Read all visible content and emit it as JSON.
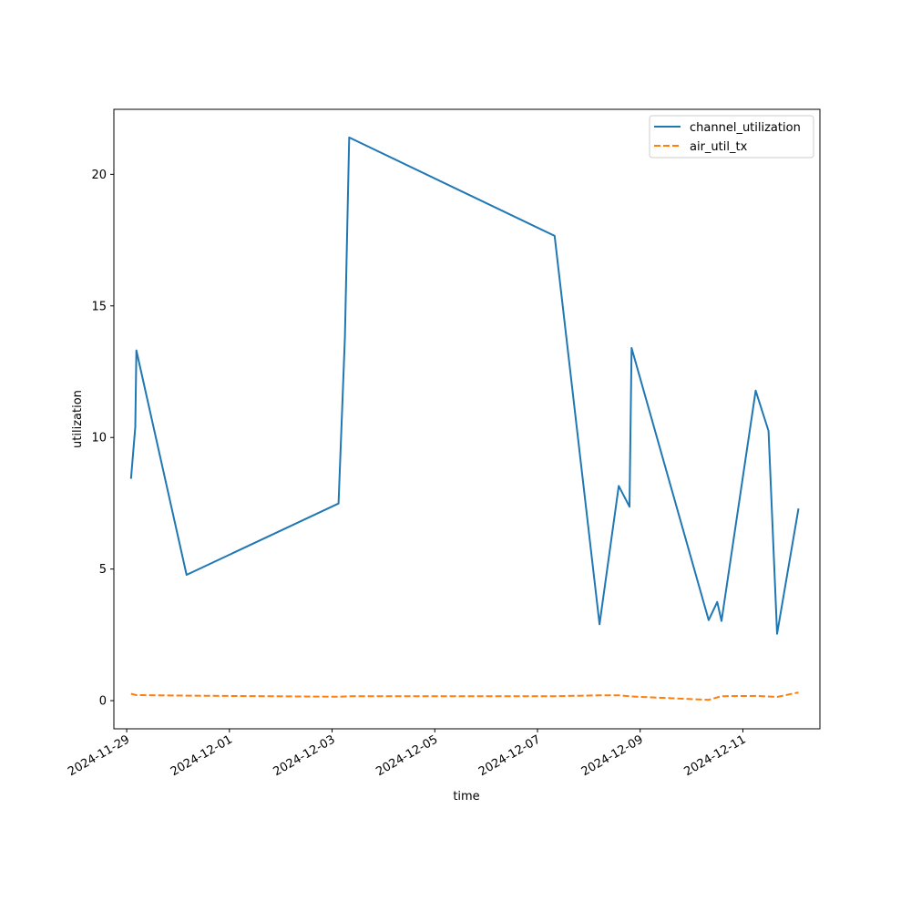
{
  "chart_data": {
    "type": "line",
    "title": "",
    "xlabel": "time",
    "ylabel": "utilization",
    "xlim": [
      "2024-11-28T18:00",
      "2024-12-12T12:00"
    ],
    "ylim": [
      -1.07,
      22.47
    ],
    "x_ticks": [
      "2024-11-29",
      "2024-12-01",
      "2024-12-03",
      "2024-12-05",
      "2024-12-07",
      "2024-12-09",
      "2024-12-11"
    ],
    "y_ticks": [
      0,
      5,
      10,
      15,
      20
    ],
    "grid": false,
    "legend_position": "top-right",
    "series": [
      {
        "name": "channel_utilization",
        "color": "#1f77b4",
        "line_style": "solid",
        "points": [
          [
            "2024-11-29T02:00",
            8.43
          ],
          [
            "2024-11-29T04:00",
            10.4
          ],
          [
            "2024-11-29T04:30",
            13.31
          ],
          [
            "2024-11-30T04:00",
            4.78
          ],
          [
            "2024-12-03T03:00",
            7.49
          ],
          [
            "2024-12-03T06:00",
            13.8
          ],
          [
            "2024-12-03T08:00",
            21.4
          ],
          [
            "2024-12-07T08:00",
            17.66
          ],
          [
            "2024-12-08T05:00",
            2.9
          ],
          [
            "2024-12-08T14:00",
            8.16
          ],
          [
            "2024-12-08T19:00",
            7.37
          ],
          [
            "2024-12-08T20:00",
            13.4
          ],
          [
            "2024-12-10T08:00",
            3.06
          ],
          [
            "2024-12-10T12:00",
            3.75
          ],
          [
            "2024-12-10T14:00",
            3.03
          ],
          [
            "2024-12-11T06:00",
            11.78
          ],
          [
            "2024-12-11T12:00",
            10.25
          ],
          [
            "2024-12-11T16:00",
            2.54
          ],
          [
            "2024-12-12T02:00",
            7.3
          ]
        ]
      },
      {
        "name": "air_util_tx",
        "color": "#ff7f0e",
        "line_style": "dashed",
        "points": [
          [
            "2024-11-29T02:00",
            0.26
          ],
          [
            "2024-11-29T04:30",
            0.21
          ],
          [
            "2024-11-30T04:00",
            0.19
          ],
          [
            "2024-12-03T03:00",
            0.15
          ],
          [
            "2024-12-03T08:00",
            0.17
          ],
          [
            "2024-12-07T08:00",
            0.17
          ],
          [
            "2024-12-08T05:00",
            0.2
          ],
          [
            "2024-12-08T14:00",
            0.2
          ],
          [
            "2024-12-08T20:00",
            0.16
          ],
          [
            "2024-12-10T08:00",
            0.03
          ],
          [
            "2024-12-10T14:00",
            0.17
          ],
          [
            "2024-12-11T06:00",
            0.18
          ],
          [
            "2024-12-11T16:00",
            0.14
          ],
          [
            "2024-12-12T02:00",
            0.31
          ]
        ]
      }
    ]
  }
}
